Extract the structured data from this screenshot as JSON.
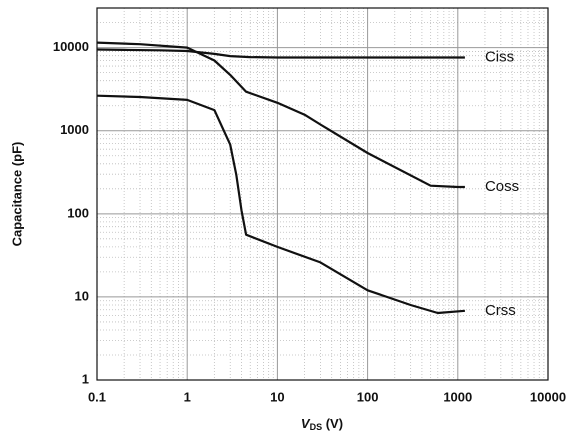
{
  "chart_data": {
    "type": "line",
    "y_label": "Capacitance (pF)",
    "x_label": {
      "main": "V",
      "subscript": "DS",
      "rest": " (V)"
    },
    "xscale": "log",
    "yscale": "log",
    "grid": true,
    "minor_grid": true,
    "xlim": [
      0.1,
      10000
    ],
    "ylim": [
      1,
      30000
    ],
    "xticks": [
      0.1,
      1,
      10,
      100,
      1000,
      10000
    ],
    "yticks": [
      1,
      10,
      100,
      1000,
      10000
    ],
    "series": [
      {
        "name": "Ciss",
        "color": "#111111",
        "x": [
          0.1,
          0.2,
          0.5,
          1,
          2,
          3,
          5,
          10,
          100,
          1000,
          1200
        ],
        "values": [
          9500,
          9400,
          9300,
          9100,
          8400,
          7900,
          7700,
          7600,
          7600,
          7600,
          7600
        ]
      },
      {
        "name": "Coss",
        "color": "#111111",
        "x": [
          0.1,
          0.3,
          1,
          2,
          3,
          4.5,
          10,
          20,
          30,
          100,
          500,
          1000,
          1200
        ],
        "values": [
          11500,
          11000,
          10000,
          7000,
          4700,
          2950,
          2170,
          1560,
          1190,
          540,
          218,
          210,
          210
        ]
      },
      {
        "name": "Crss",
        "color": "#111111",
        "x": [
          0.1,
          0.3,
          1,
          2,
          3,
          3.5,
          4,
          4.5,
          10,
          30,
          100,
          300,
          600,
          1200
        ],
        "values": [
          2640,
          2550,
          2350,
          1770,
          680,
          295,
          110,
          56,
          40,
          26,
          12,
          8,
          6.4,
          6.8
        ]
      }
    ]
  }
}
